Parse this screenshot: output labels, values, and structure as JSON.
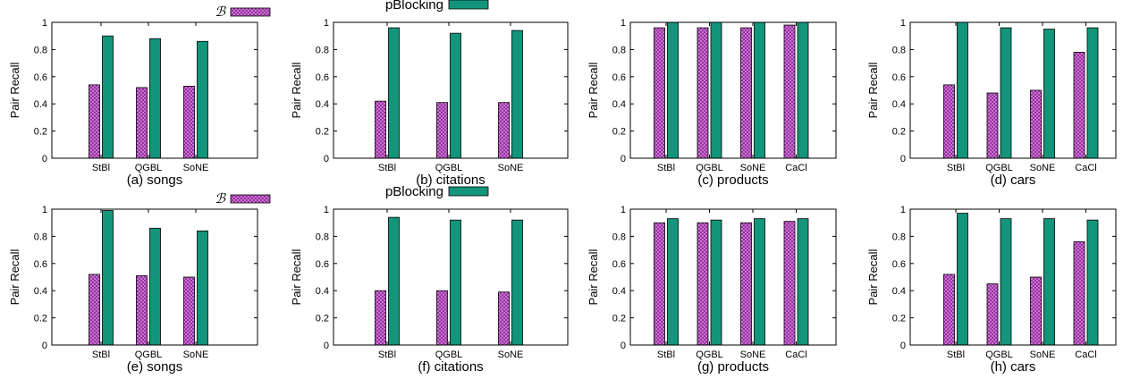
{
  "legend": {
    "series_a_label": "ℬ",
    "series_b_label": "pBlocking"
  },
  "colors": {
    "series_a_fill": "#e87cf0",
    "series_a_hatch": "#7a2a82",
    "series_b_fill": "#12957a",
    "axis": "#000000"
  },
  "chart_data": [
    {
      "type": "bar",
      "caption": "(a) songs",
      "ylabel": "Pair Recall",
      "ylim": [
        0,
        1
      ],
      "yticks": [
        "0",
        "0.2",
        "0.4",
        "0.6",
        "0.8",
        "1"
      ],
      "categories": [
        "StBl",
        "QGBL",
        "SoNE"
      ],
      "series": [
        {
          "name": "ℬ",
          "values": [
            0.54,
            0.52,
            0.53
          ]
        },
        {
          "name": "pBlocking",
          "values": [
            0.9,
            0.88,
            0.86
          ]
        }
      ]
    },
    {
      "type": "bar",
      "caption": "(b) citations",
      "ylabel": "Pair Recall",
      "ylim": [
        0,
        1
      ],
      "yticks": [
        "0",
        "0.2",
        "0.4",
        "0.6",
        "0.8",
        "1"
      ],
      "categories": [
        "StBl",
        "QGBL",
        "SoNE"
      ],
      "series": [
        {
          "name": "ℬ",
          "values": [
            0.42,
            0.41,
            0.41
          ]
        },
        {
          "name": "pBlocking",
          "values": [
            0.96,
            0.92,
            0.94
          ]
        }
      ]
    },
    {
      "type": "bar",
      "caption": "(c) products",
      "ylabel": "Pair Recall",
      "ylim": [
        0,
        1
      ],
      "yticks": [
        "0",
        "0.2",
        "0.4",
        "0.6",
        "0.8",
        "1"
      ],
      "categories": [
        "StBl",
        "QGBL",
        "SoNE",
        "CaCl"
      ],
      "series": [
        {
          "name": "ℬ",
          "values": [
            0.96,
            0.96,
            0.96,
            0.98
          ]
        },
        {
          "name": "pBlocking",
          "values": [
            1.0,
            1.0,
            1.0,
            1.0
          ]
        }
      ]
    },
    {
      "type": "bar",
      "caption": "(d) cars",
      "ylabel": "Pair Recall",
      "ylim": [
        0,
        1
      ],
      "yticks": [
        "0",
        "0.2",
        "0.4",
        "0.6",
        "0.8",
        "1"
      ],
      "categories": [
        "StBl",
        "QGBL",
        "SoNE",
        "CaCl"
      ],
      "series": [
        {
          "name": "ℬ",
          "values": [
            0.54,
            0.48,
            0.5,
            0.78
          ]
        },
        {
          "name": "pBlocking",
          "values": [
            1.0,
            0.96,
            0.95,
            0.96
          ]
        }
      ]
    },
    {
      "type": "bar",
      "caption": "(e) songs",
      "ylabel": "Pair Recall",
      "ylim": [
        0,
        1
      ],
      "yticks": [
        "0",
        "0.2",
        "0.4",
        "0.6",
        "0.8",
        "1"
      ],
      "categories": [
        "StBl",
        "QGBL",
        "SoNE"
      ],
      "series": [
        {
          "name": "ℬ",
          "values": [
            0.52,
            0.51,
            0.5
          ]
        },
        {
          "name": "pBlocking",
          "values": [
            0.99,
            0.86,
            0.84
          ]
        }
      ]
    },
    {
      "type": "bar",
      "caption": "(f) citations",
      "ylabel": "Pair Recall",
      "ylim": [
        0,
        1
      ],
      "yticks": [
        "0",
        "0.2",
        "0.4",
        "0.6",
        "0.8",
        "1"
      ],
      "categories": [
        "StBl",
        "QGBL",
        "SoNE"
      ],
      "series": [
        {
          "name": "ℬ",
          "values": [
            0.4,
            0.4,
            0.39
          ]
        },
        {
          "name": "pBlocking",
          "values": [
            0.94,
            0.92,
            0.92
          ]
        }
      ]
    },
    {
      "type": "bar",
      "caption": "(g) products",
      "ylabel": "Pair Recall",
      "ylim": [
        0,
        1
      ],
      "yticks": [
        "0",
        "0.2",
        "0.4",
        "0.6",
        "0.8",
        "1"
      ],
      "categories": [
        "StBl",
        "QGBL",
        "SoNE",
        "CaCl"
      ],
      "series": [
        {
          "name": "ℬ",
          "values": [
            0.9,
            0.9,
            0.9,
            0.91
          ]
        },
        {
          "name": "pBlocking",
          "values": [
            0.93,
            0.92,
            0.93,
            0.93
          ]
        }
      ]
    },
    {
      "type": "bar",
      "caption": "(h) cars",
      "ylabel": "Pair Recall",
      "ylim": [
        0,
        1
      ],
      "yticks": [
        "0",
        "0.2",
        "0.4",
        "0.6",
        "0.8",
        "1"
      ],
      "categories": [
        "StBl",
        "QGBL",
        "SoNE",
        "CaCl"
      ],
      "series": [
        {
          "name": "ℬ",
          "values": [
            0.52,
            0.45,
            0.5,
            0.76
          ]
        },
        {
          "name": "pBlocking",
          "values": [
            0.97,
            0.93,
            0.93,
            0.92
          ]
        }
      ]
    }
  ]
}
